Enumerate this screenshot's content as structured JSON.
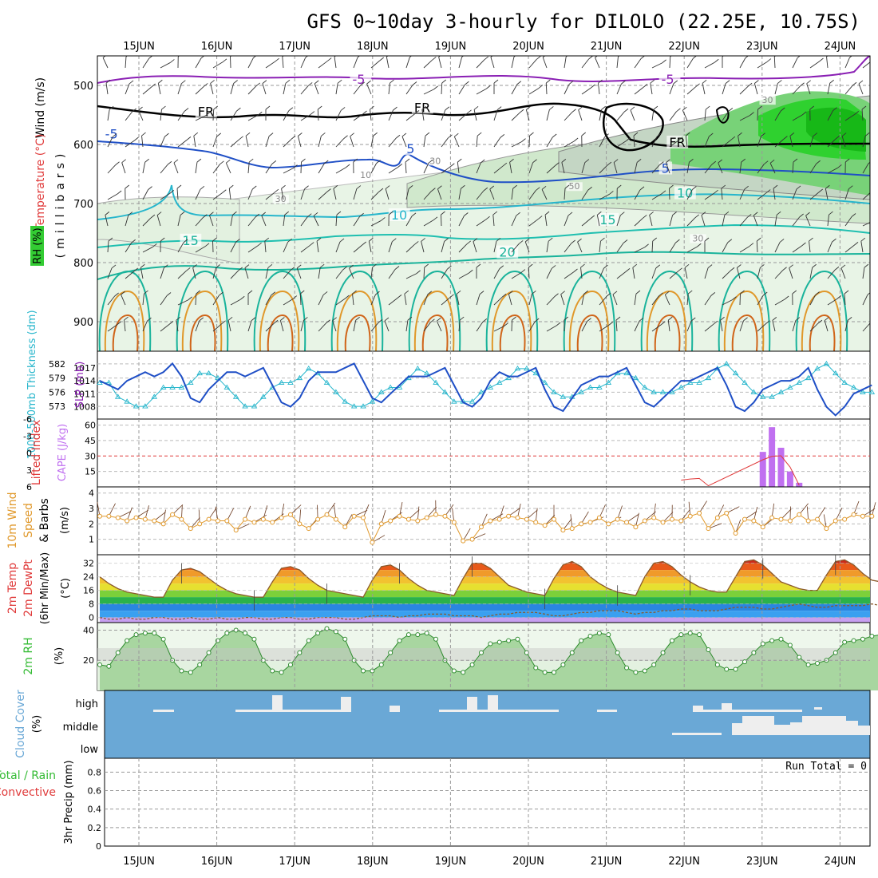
{
  "title": "GFS 0~10day 3-hourly for DILOLO (22.25E, 10.75S)",
  "colors": {
    "purple": "#8a1fb4",
    "blue": "#1f4fc6",
    "cyan": "#27b6cc",
    "teal": "#19b39b",
    "orange": "#e0982a",
    "green": "#33bb33",
    "red": "#e03b3b",
    "violet": "#c070f0",
    "cloud": "#6aa8d6"
  },
  "days": [
    "15JUN",
    "16JUN",
    "17JUN",
    "18JUN",
    "19JUN",
    "20JUN",
    "21JUN",
    "22JUN",
    "23JUN",
    "24JUN"
  ],
  "panels": {
    "upper": {
      "labels": {
        "wind": "Wind (m/s)",
        "temp": "Temperature (°C)",
        "rh": "RH (%)",
        "mb": "(millibars)"
      },
      "ticks": [
        "500",
        "600",
        "700",
        "800",
        "900"
      ],
      "contours": [
        {
          "text": "-5",
          "x": 0.33,
          "p": 497
        },
        {
          "text": "-5",
          "x": 0.73,
          "p": 497
        },
        {
          "text": "FR",
          "x": 0.13,
          "p": 552
        },
        {
          "text": "FR",
          "x": 0.41,
          "p": 545
        },
        {
          "text": "FR",
          "x": 0.74,
          "p": 604
        },
        {
          "text": "-5",
          "x": 0.01,
          "p": 590
        },
        {
          "text": "5",
          "x": 0.4,
          "p": 615
        },
        {
          "text": "5",
          "x": 0.73,
          "p": 648
        },
        {
          "text": "10",
          "x": 0.38,
          "p": 727
        },
        {
          "text": "10",
          "x": 0.75,
          "p": 690
        },
        {
          "text": "15",
          "x": 0.11,
          "p": 770
        },
        {
          "text": "15",
          "x": 0.65,
          "p": 735
        },
        {
          "text": "20",
          "x": 0.52,
          "p": 790
        },
        {
          "text": "30",
          "x": 0.43,
          "p": 633
        },
        {
          "text": "30",
          "x": 0.23,
          "p": 697
        },
        {
          "text": "50",
          "x": 0.61,
          "p": 676
        },
        {
          "text": "30",
          "x": 0.77,
          "p": 764
        },
        {
          "text": "10",
          "x": 0.34,
          "p": 657
        },
        {
          "text": "30",
          "x": 0.86,
          "p": 530
        }
      ]
    },
    "thickness": {
      "labels": {
        "left": "1000-500mb Thickness (dm)",
        "right": "SLP (mb)"
      },
      "left_ticks": [
        "582",
        "579",
        "576",
        "573"
      ],
      "right_ticks": [
        "1017",
        "1014",
        "1011",
        "1008"
      ]
    },
    "cape": {
      "labels": {
        "left": "Lifted Index",
        "right": "CAPE (J/kg)"
      },
      "left_ticks": [
        "-6",
        "-3",
        "0",
        "3",
        "6"
      ],
      "right_ticks": [
        "60",
        "45",
        "30",
        "15"
      ]
    },
    "wind10": {
      "labels": {
        "a": "10m Wind",
        "b": "Speed",
        "c": "(m/s)",
        "d": "& Barbs"
      },
      "ticks": [
        "4",
        "3",
        "2",
        "1"
      ]
    },
    "temp2m": {
      "labels": {
        "a": "2m Temp",
        "b": "2m DewPt",
        "c": "(6hr Min/Max)",
        "d": "(°C)"
      },
      "ticks": [
        "32",
        "24",
        "16",
        "8",
        "0"
      ]
    },
    "rh2m": {
      "labels": {
        "a": "2m RH",
        "b": "(%)"
      },
      "ticks": [
        "40",
        "20"
      ]
    },
    "cloud": {
      "labels": {
        "a": "Cloud Cover",
        "b": "(%)"
      },
      "levels": [
        "high",
        "middle",
        "low"
      ]
    },
    "precip": {
      "labels": {
        "a": "Total / Rain",
        "b": "Convective",
        "c": "3hr Precip (mm)"
      },
      "run_total": "Run Total = 0",
      "ticks": [
        "0.8",
        "0.6",
        "0.4",
        "0.2",
        "0"
      ]
    }
  },
  "chart_data": {
    "type": "line",
    "x_start": "2025-06-14 12Z",
    "step_hours": 3,
    "slp_mb": [
      1014,
      1013,
      1012,
      1014,
      1015,
      1016,
      1015,
      1016,
      1018,
      1015,
      1010,
      1009,
      1012,
      1014,
      1016,
      1016,
      1015,
      1016,
      1017,
      1013,
      1009,
      1008,
      1010,
      1014,
      1016,
      1016,
      1016,
      1017,
      1018,
      1014,
      1010,
      1009,
      1011,
      1013,
      1015,
      1015,
      1015,
      1016,
      1017,
      1013,
      1009,
      1008,
      1010,
      1014,
      1016,
      1015,
      1015,
      1016,
      1017,
      1012,
      1008,
      1007,
      1010,
      1013,
      1014,
      1015,
      1015,
      1016,
      1017,
      1013,
      1009,
      1008,
      1010,
      1012,
      1014,
      1014,
      1015,
      1016,
      1017,
      1013,
      1008,
      1007,
      1009,
      1012,
      1013,
      1014,
      1014,
      1015,
      1017,
      1012,
      1008,
      1006,
      1008,
      1011,
      1012,
      1013
    ],
    "thickness_dm": [
      578,
      578,
      575,
      574,
      573,
      573,
      575,
      577,
      577,
      577,
      578,
      580,
      580,
      579,
      577,
      575,
      573,
      573,
      575,
      577,
      578,
      578,
      579,
      581,
      580,
      578,
      576,
      574,
      573,
      573,
      574,
      576,
      577,
      577,
      579,
      581,
      580,
      578,
      576,
      574,
      574,
      574,
      576,
      577,
      578,
      579,
      581,
      581,
      580,
      578,
      576,
      575,
      575,
      576,
      577,
      577,
      578,
      580,
      580,
      579,
      577,
      576,
      576,
      576,
      577,
      578,
      578,
      579,
      581,
      582,
      580,
      578,
      576,
      575,
      575,
      576,
      577,
      578,
      579,
      581,
      582,
      580,
      578,
      577,
      576,
      576
    ],
    "cape_jkg": {
      "times": [
        "2025-06-23 09Z",
        "2025-06-23 12Z",
        "2025-06-23 15Z",
        "2025-06-23 18Z",
        "2025-06-23 21Z"
      ],
      "values": [
        34,
        58,
        38,
        15,
        4
      ]
    },
    "lifted_index": {
      "times": [
        "2025-06-22 06Z",
        "2025-06-22 09Z",
        "2025-06-22 12Z",
        "2025-06-22 15Z",
        "2025-06-23 09Z",
        "2025-06-23 12Z",
        "2025-06-23 15Z",
        "2025-06-23 18Z",
        "2025-06-23 21Z"
      ],
      "values": [
        4.8,
        4.6,
        4.5,
        5.8,
        1.2,
        0.6,
        0.5,
        2.5,
        5.7
      ]
    },
    "wind10_ms": [
      2.5,
      2.5,
      2.4,
      2.2,
      2.4,
      2.3,
      2.2,
      2.0,
      2.6,
      2.3,
      1.7,
      2.0,
      2.3,
      2.2,
      2.2,
      1.6,
      2.3,
      2.1,
      2.3,
      2.1,
      2.4,
      2.6,
      2.0,
      1.7,
      2.3,
      2.6,
      2.3,
      1.8,
      2.5,
      2.4,
      0.8,
      2.0,
      2.2,
      2.5,
      2.3,
      2.2,
      2.4,
      2.6,
      2.5,
      2.1,
      0.9,
      1.0,
      1.8,
      2.2,
      2.3,
      2.5,
      2.4,
      2.3,
      2.1,
      1.9,
      2.3,
      1.6,
      1.7,
      2.0,
      2.1,
      2.4,
      2.0,
      2.3,
      2.1,
      1.8,
      2.2,
      2.4,
      2.1,
      2.3,
      2.2,
      2.5,
      2.7,
      1.7,
      2.4,
      2.7,
      1.4,
      2.3,
      2.2,
      1.8,
      2.4,
      2.3,
      2.2,
      2.6,
      2.2,
      2.3,
      1.7,
      2.2,
      2.3,
      2.6,
      2.5,
      2.5
    ],
    "temp2m_c": [
      24,
      20,
      17,
      15,
      14,
      13,
      12,
      12,
      22,
      28,
      29,
      27,
      23,
      19,
      16,
      14,
      13,
      12,
      12,
      21,
      29,
      30,
      28,
      23,
      19,
      16,
      15,
      14,
      13,
      12,
      22,
      30,
      31,
      28,
      23,
      19,
      16,
      15,
      14,
      13,
      23,
      32,
      32,
      29,
      24,
      19,
      17,
      15,
      14,
      13,
      23,
      31,
      33,
      30,
      24,
      20,
      17,
      15,
      14,
      13,
      24,
      32,
      33,
      30,
      25,
      21,
      18,
      16,
      15,
      15,
      24,
      33,
      34,
      31,
      26,
      21,
      19,
      17,
      16,
      16,
      25,
      33,
      34,
      31,
      26,
      22,
      21
    ],
    "dewpt2m_c": [
      0,
      -1,
      -1,
      0,
      -1,
      -1,
      0,
      0,
      -1,
      -1,
      0,
      -1,
      -1,
      0,
      -1,
      -1,
      0,
      0,
      -1,
      -1,
      0,
      0,
      -1,
      -1,
      0,
      0,
      0,
      -1,
      -1,
      0,
      1,
      1,
      1,
      0,
      1,
      1,
      2,
      2,
      2,
      1,
      1,
      1,
      0,
      1,
      2,
      2,
      3,
      3,
      3,
      2,
      1,
      1,
      2,
      3,
      3,
      4,
      4,
      4,
      3,
      2,
      3,
      3,
      4,
      4,
      5,
      5,
      4,
      4,
      4,
      5,
      6,
      6,
      6,
      5,
      5,
      6,
      7,
      8,
      7,
      6,
      6,
      7,
      7,
      7,
      7,
      8,
      7
    ],
    "rh2m_pct": [
      17,
      16,
      25,
      33,
      37,
      38,
      38,
      34,
      20,
      13,
      12,
      17,
      25,
      33,
      38,
      40,
      38,
      34,
      20,
      13,
      12,
      17,
      25,
      33,
      38,
      41,
      39,
      34,
      20,
      13,
      13,
      17,
      25,
      33,
      37,
      37,
      38,
      34,
      20,
      13,
      12,
      17,
      25,
      31,
      32,
      33,
      34,
      25,
      15,
      12,
      12,
      17,
      25,
      33,
      36,
      38,
      37,
      25,
      15,
      12,
      13,
      17,
      25,
      33,
      37,
      38,
      37,
      27,
      17,
      14,
      14,
      19,
      25,
      31,
      33,
      34,
      30,
      22,
      17,
      18,
      20,
      25,
      32,
      33,
      34,
      36,
      37
    ],
    "precip_mm_3hr": [
      0,
      0,
      0,
      0,
      0,
      0,
      0,
      0,
      0,
      0
    ]
  }
}
